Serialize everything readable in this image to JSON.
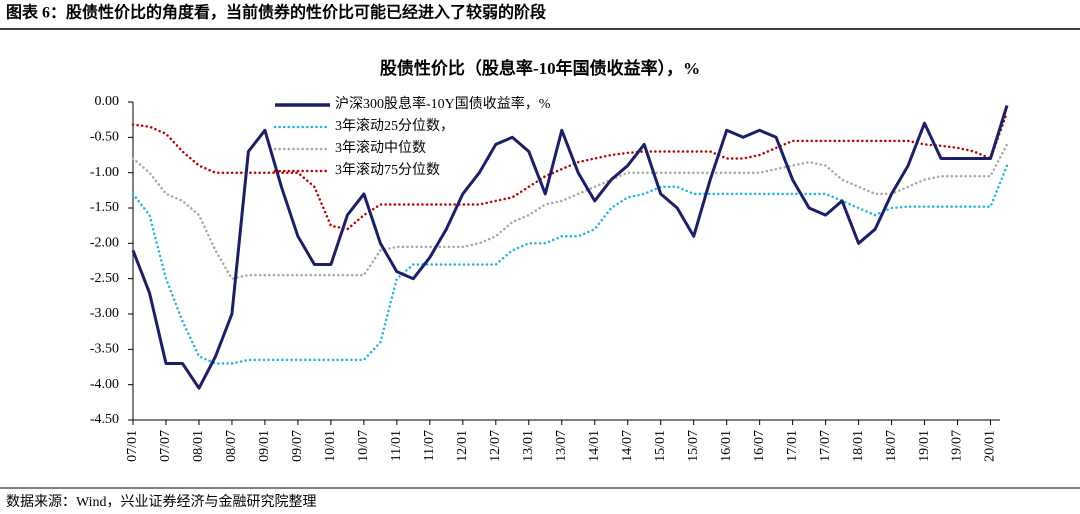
{
  "header": "图表 6：股债性价比的角度看，当前债券的性价比可能已经进入了较弱的阶段",
  "source": "数据来源：Wind，兴业证券经济与金融研究院整理",
  "chart_data": {
    "type": "line",
    "title": "股债性价比（股息率-10年国债收益率），%",
    "categories": [
      "07/01",
      null,
      "07/07",
      null,
      "08/01",
      null,
      "08/07",
      null,
      "09/01",
      null,
      "09/07",
      null,
      "10/01",
      null,
      "10/07",
      null,
      "11/01",
      null,
      "11/07",
      null,
      "12/01",
      null,
      "12/07",
      null,
      "13/01",
      null,
      "13/07",
      null,
      "14/01",
      null,
      "14/07",
      null,
      "15/01",
      null,
      "15/07",
      null,
      "16/01",
      null,
      "16/07",
      null,
      "17/01",
      null,
      "17/07",
      null,
      "18/01",
      null,
      "18/07",
      null,
      "19/01",
      null,
      "19/07",
      null,
      "20/01",
      null
    ],
    "series": [
      {
        "name": "沪深300股息率-10Y国债收益率，%",
        "color": "#1b1f6b",
        "style": "solid",
        "values": [
          -2.1,
          -2.7,
          -3.7,
          -3.7,
          -4.05,
          -3.6,
          -3.0,
          -0.7,
          -0.4,
          -1.2,
          -1.9,
          -2.3,
          -2.3,
          -1.6,
          -1.3,
          -2.0,
          -2.4,
          -2.5,
          -2.2,
          -1.8,
          -1.3,
          -1.0,
          -0.6,
          -0.5,
          -0.7,
          -1.3,
          -0.4,
          -1.0,
          -1.4,
          -1.1,
          -0.9,
          -0.6,
          -1.3,
          -1.5,
          -1.9,
          -1.1,
          -0.4,
          -0.5,
          -0.4,
          -0.5,
          -1.1,
          -1.5,
          -1.6,
          -1.4,
          -2.0,
          -1.8,
          -1.3,
          -0.9,
          -0.3,
          -0.8,
          -0.8,
          -0.8,
          -0.8,
          -0.05
        ]
      },
      {
        "name": "3年滚动25分位数，",
        "color": "#1fb6e0",
        "style": "dotted",
        "values": [
          -1.3,
          -1.6,
          -2.5,
          -3.1,
          -3.6,
          -3.7,
          -3.7,
          -3.65,
          -3.65,
          -3.65,
          -3.65,
          -3.65,
          -3.65,
          -3.65,
          -3.65,
          -3.4,
          -2.5,
          -2.3,
          -2.3,
          -2.3,
          -2.3,
          -2.3,
          -2.3,
          -2.1,
          -2.0,
          -2.0,
          -1.9,
          -1.9,
          -1.8,
          -1.5,
          -1.35,
          -1.3,
          -1.2,
          -1.2,
          -1.3,
          -1.3,
          -1.3,
          -1.3,
          -1.3,
          -1.3,
          -1.3,
          -1.3,
          -1.3,
          -1.4,
          -1.5,
          -1.6,
          -1.5,
          -1.48,
          -1.48,
          -1.48,
          -1.48,
          -1.48,
          -1.48,
          -0.9
        ]
      },
      {
        "name": "3年滚动中位数",
        "color": "#a6a6a6",
        "style": "dotted",
        "values": [
          -0.8,
          -1.0,
          -1.3,
          -1.4,
          -1.6,
          -2.1,
          -2.5,
          -2.45,
          -2.45,
          -2.45,
          -2.45,
          -2.45,
          -2.45,
          -2.45,
          -2.45,
          -2.1,
          -2.05,
          -2.05,
          -2.05,
          -2.05,
          -2.05,
          -2.0,
          -1.9,
          -1.7,
          -1.6,
          -1.45,
          -1.4,
          -1.3,
          -1.2,
          -1.1,
          -1.0,
          -1.0,
          -1.0,
          -1.0,
          -1.0,
          -1.0,
          -1.0,
          -1.0,
          -1.0,
          -0.95,
          -0.9,
          -0.85,
          -0.9,
          -1.1,
          -1.2,
          -1.3,
          -1.3,
          -1.2,
          -1.1,
          -1.05,
          -1.05,
          -1.05,
          -1.05,
          -0.6
        ]
      },
      {
        "name": "3年滚动75分位数",
        "color": "#c00000",
        "style": "dotted",
        "values": [
          -0.32,
          -0.35,
          -0.45,
          -0.7,
          -0.9,
          -1.0,
          -1.0,
          -1.0,
          -1.0,
          -1.0,
          -1.0,
          -1.2,
          -1.75,
          -1.8,
          -1.6,
          -1.45,
          -1.45,
          -1.45,
          -1.45,
          -1.45,
          -1.45,
          -1.45,
          -1.4,
          -1.35,
          -1.2,
          -1.05,
          -0.95,
          -0.85,
          -0.8,
          -0.75,
          -0.72,
          -0.7,
          -0.7,
          -0.7,
          -0.7,
          -0.7,
          -0.8,
          -0.8,
          -0.75,
          -0.65,
          -0.55,
          -0.55,
          -0.55,
          -0.55,
          -0.55,
          -0.55,
          -0.55,
          -0.55,
          -0.6,
          -0.62,
          -0.65,
          -0.7,
          -0.8,
          -0.15
        ]
      }
    ],
    "ylim": [
      -4.5,
      0
    ],
    "yticks": [
      {
        "value": 0,
        "label": "0.00"
      },
      {
        "value": -0.5,
        "label": "-0.50"
      },
      {
        "value": -1,
        "label": "-1.00"
      },
      {
        "value": -1.5,
        "label": "-1.50"
      },
      {
        "value": -2,
        "label": "-2.00"
      },
      {
        "value": -2.5,
        "label": "-2.50"
      },
      {
        "value": -3,
        "label": "-3.00"
      },
      {
        "value": -3.5,
        "label": "-3.50"
      },
      {
        "value": -4,
        "label": "-4.00"
      },
      {
        "value": -4.5,
        "label": "-4.50"
      }
    ],
    "legend": "upper-left"
  }
}
